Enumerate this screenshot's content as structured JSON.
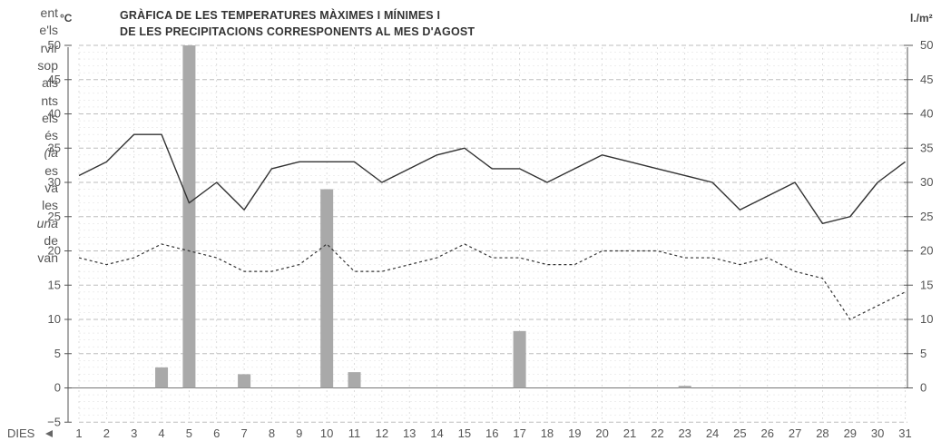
{
  "side_text": [
    "ent",
    "e'ls",
    "rvir",
    "sop",
    "als",
    "nts",
    "els",
    "és",
    "(la",
    "es",
    "va",
    "les",
    "una",
    "de",
    "van"
  ],
  "chart_data": {
    "type": "line",
    "title_line1": "GRÀFICA DE LES TEMPERATURES MÀXIMES I MÍNIMES I",
    "title_line2": "DE LES PRECIPITACIONS CORRESPONENTS AL MES D'AGOST",
    "ylabel_left": "°C",
    "ylabel_right": "l./m²",
    "xlabel": "DIES",
    "ylim": [
      -5,
      50
    ],
    "yticks": [
      -5,
      0,
      5,
      10,
      15,
      20,
      25,
      30,
      35,
      40,
      45,
      50
    ],
    "yticks_right": [
      0,
      5,
      10,
      15,
      20,
      25,
      30,
      35,
      40,
      45,
      50
    ],
    "x": [
      1,
      2,
      3,
      4,
      5,
      6,
      7,
      8,
      9,
      10,
      11,
      12,
      13,
      14,
      15,
      16,
      17,
      18,
      19,
      20,
      21,
      22,
      23,
      24,
      25,
      26,
      27,
      28,
      29,
      30,
      31
    ],
    "series": [
      {
        "kind": "line",
        "style": "solid",
        "values": [
          31,
          33,
          37,
          37,
          27,
          30,
          26,
          32,
          33,
          33,
          33,
          30,
          32,
          34,
          35,
          32,
          32,
          30,
          32,
          34,
          33,
          32,
          31,
          30,
          26,
          28,
          30,
          24,
          25,
          30,
          33
        ]
      },
      {
        "kind": "line",
        "style": "dotted",
        "values": [
          19,
          18,
          19,
          21,
          20,
          19,
          17,
          17,
          18,
          21,
          17,
          17,
          18,
          19,
          21,
          19,
          19,
          18,
          18,
          20,
          20,
          20,
          19,
          19,
          18,
          19,
          17,
          16,
          10,
          12,
          14
        ]
      },
      {
        "kind": "bar",
        "points": [
          {
            "x": 4,
            "value": 3
          },
          {
            "x": 5,
            "value": 50
          },
          {
            "x": 7,
            "value": 2
          },
          {
            "x": 10,
            "value": 29
          },
          {
            "x": 11,
            "value": 2.3
          },
          {
            "x": 17,
            "value": 8.3
          },
          {
            "x": 23,
            "value": 0.3
          }
        ]
      }
    ],
    "grid": true,
    "colors": {
      "bars": "#a9a9a9",
      "lines": "#333333",
      "grid": "#cfcfcf"
    }
  }
}
